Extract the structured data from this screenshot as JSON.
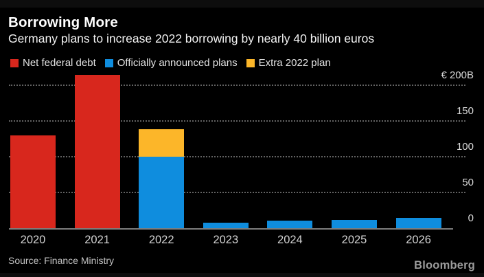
{
  "header": {
    "title": "Borrowing More",
    "subtitle": "Germany plans to increase 2022 borrowing by nearly 40 billion euros"
  },
  "footer": {
    "source": "Source: Finance Ministry",
    "brand": "Bloomberg"
  },
  "chart_data": {
    "type": "bar",
    "stacked": true,
    "title": "Borrowing More",
    "subtitle": "Germany plans to increase 2022 borrowing by nearly 40 billion euros",
    "unit": "billion euros",
    "categories": [
      "2020",
      "2021",
      "2022",
      "2023",
      "2024",
      "2025",
      "2026"
    ],
    "series": [
      {
        "name": "Net federal debt",
        "color": "#d8271d",
        "values": [
          130,
          215,
          0,
          0,
          0,
          0,
          0
        ]
      },
      {
        "name": "Officially announced plans",
        "color": "#0f8dde",
        "values": [
          0,
          0,
          100,
          8,
          11,
          12,
          14
        ]
      },
      {
        "name": "Extra 2022 plan",
        "color": "#fcb629",
        "values": [
          0,
          0,
          39,
          0,
          0,
          0,
          0
        ]
      }
    ],
    "yticks": [
      {
        "value": 0,
        "label": "0"
      },
      {
        "value": 50,
        "label": "50"
      },
      {
        "value": 100,
        "label": "100"
      },
      {
        "value": 150,
        "label": "150"
      },
      {
        "value": 200,
        "label": "€ 200B"
      }
    ],
    "ylim": [
      0,
      215
    ],
    "grid": "horizontal-dotted",
    "legend_position": "top-left"
  },
  "colors": {
    "background": "#000000",
    "gridline": "#636363",
    "baseline": "#7d7d7d",
    "axis_text": "#d2d2d2",
    "title_text": "#ffffff"
  }
}
